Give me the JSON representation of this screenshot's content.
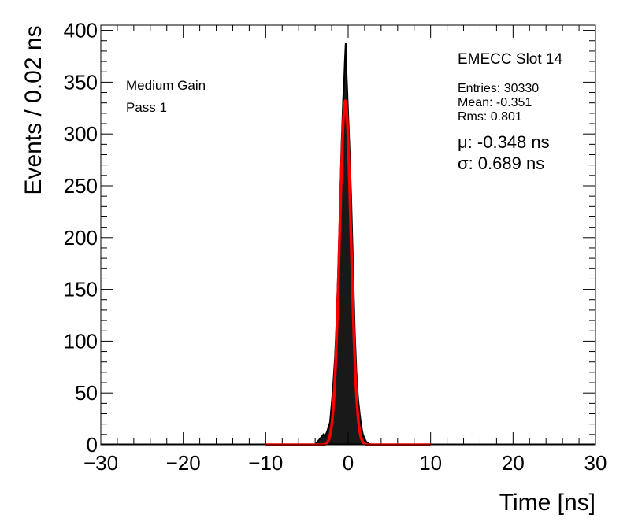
{
  "chart_data": {
    "type": "line",
    "xlabel": "Time [ns]",
    "ylabel": "Events / 0.02 ns",
    "xlim": [
      -30,
      30
    ],
    "ylim": [
      0,
      405
    ],
    "x_ticks": [
      -30,
      -20,
      -10,
      0,
      10,
      20,
      30
    ],
    "x_tick_labels": [
      "−30",
      "−20",
      "−10",
      "0",
      "10",
      "20",
      "30"
    ],
    "y_ticks": [
      0,
      50,
      100,
      150,
      200,
      250,
      300,
      350,
      400
    ],
    "y_tick_labels": [
      "0",
      "50",
      "100",
      "150",
      "200",
      "250",
      "300",
      "350",
      "400"
    ],
    "grid": false,
    "annotations": {
      "gain": "Medium Gain",
      "pass": "Pass 1",
      "slot": "EMECC Slot 14",
      "entries": "Entries: 30330",
      "mean": "Mean: -0.351",
      "rms": "Rms: 0.801",
      "mu": "μ: -0.348 ns",
      "sigma": "σ: 0.689 ns"
    },
    "series": [
      {
        "kind": "histogram",
        "color": "#000000",
        "x": [
          -4.0,
          -3.5,
          -3.0,
          -2.8,
          -2.5,
          -2.2,
          -2.0,
          -1.8,
          -1.6,
          -1.4,
          -1.2,
          -1.0,
          -0.8,
          -0.6,
          -0.5,
          -0.4,
          -0.3,
          -0.2,
          -0.1,
          0.0,
          0.2,
          0.4,
          0.6,
          0.8,
          1.0,
          1.2,
          1.4,
          1.6,
          1.8,
          2.0,
          2.2,
          2.5,
          3.0
        ],
        "values": [
          0,
          5,
          10,
          8,
          14,
          22,
          40,
          60,
          85,
          120,
          170,
          230,
          290,
          335,
          350,
          370,
          388,
          360,
          340,
          320,
          280,
          230,
          170,
          110,
          70,
          45,
          30,
          18,
          10,
          6,
          3,
          1,
          0
        ]
      },
      {
        "kind": "gaussian-fit",
        "color": "#ff0000",
        "fit_range": [
          -10,
          10
        ],
        "mu": -0.348,
        "sigma": 0.689,
        "amplitude": 332
      }
    ]
  }
}
